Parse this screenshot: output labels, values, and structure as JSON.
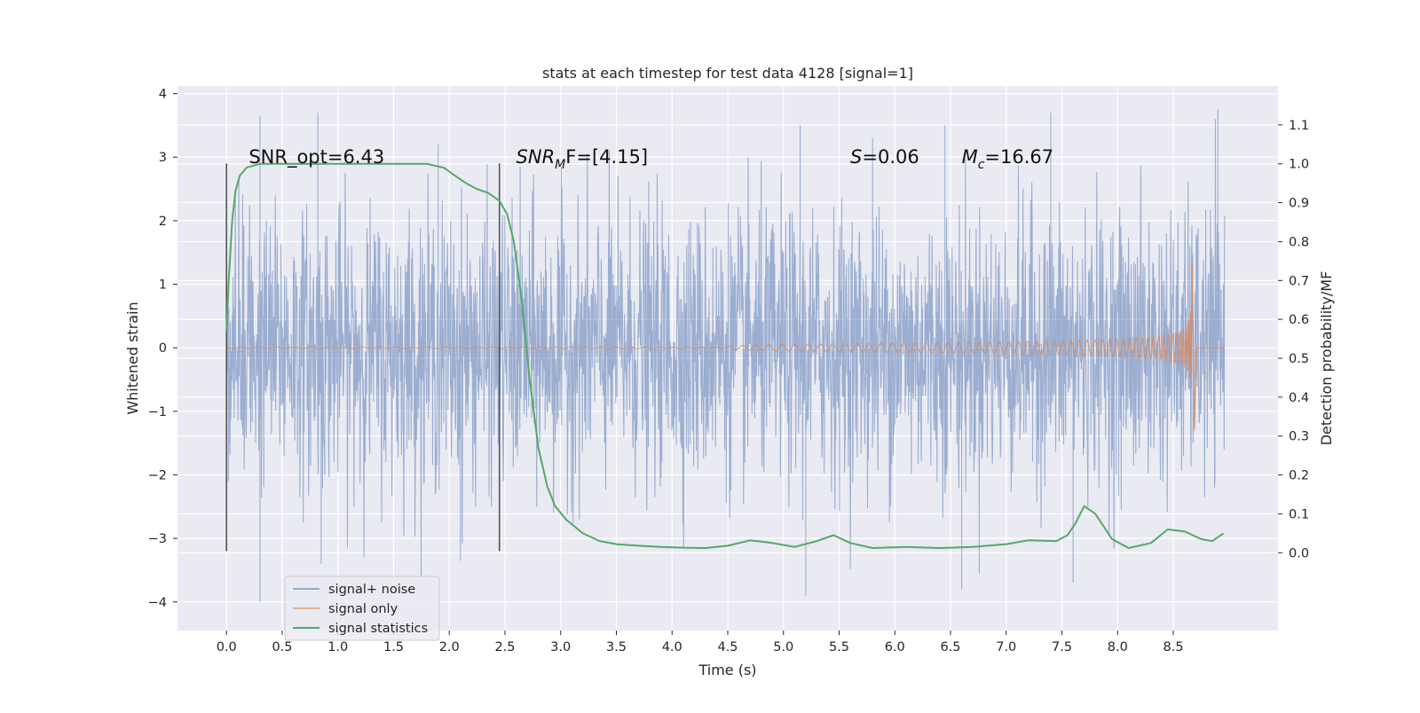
{
  "chart_data": {
    "type": "line",
    "title": "stats at each timestep for test data 4128 [signal=1]",
    "xlabel": "Time (s)",
    "ylabel_left": "Whitened strain",
    "ylabel_right": "Detection probability/MF",
    "xlim": [
      -0.44,
      9.44
    ],
    "ylim_left": [
      -4.45,
      4.12
    ],
    "ylim_right": [
      -0.2,
      1.2
    ],
    "x_ticks": [
      "0.0",
      "0.5",
      "1.0",
      "1.5",
      "2.0",
      "2.5",
      "3.0",
      "3.5",
      "4.0",
      "4.5",
      "5.0",
      "5.5",
      "6.0",
      "6.5",
      "7.0",
      "7.5",
      "8.0",
      "8.5"
    ],
    "y_left_ticks": [
      "4",
      "3",
      "2",
      "1",
      "0",
      "−1",
      "−2",
      "−3",
      "−4"
    ],
    "y_right_ticks": [
      "1.1",
      "1.0",
      "0.9",
      "0.8",
      "0.7",
      "0.6",
      "0.5",
      "0.4",
      "0.3",
      "0.2",
      "0.1",
      "0.0"
    ],
    "grid": true,
    "legend_position": "lower-left",
    "colors": {
      "background": "#eaeaf2",
      "grid": "#ffffff",
      "noise": "#4c72b0",
      "signal": "#dd8452",
      "stats": "#55a868",
      "vline": "#555555"
    },
    "series": [
      {
        "name": "signal+ noise",
        "axis": "left",
        "description_range": [
          -4.0,
          3.75
        ],
        "peaks": [
          {
            "x": 0.3,
            "y": 3.65
          },
          {
            "x": 0.82,
            "y": 3.7
          },
          {
            "x": 1.9,
            "y": 3.2
          },
          {
            "x": 5.15,
            "y": 3.5
          },
          {
            "x": 5.8,
            "y": 3.3
          },
          {
            "x": 6.45,
            "y": 3.5
          },
          {
            "x": 7.4,
            "y": 3.7
          },
          {
            "x": 8.9,
            "y": 3.75
          }
        ],
        "troughs": [
          {
            "x": 0.3,
            "y": -4.0
          },
          {
            "x": 0.85,
            "y": -3.4
          },
          {
            "x": 2.1,
            "y": -3.35
          },
          {
            "x": 5.2,
            "y": -3.9
          },
          {
            "x": 6.6,
            "y": -3.8
          },
          {
            "x": 7.6,
            "y": -3.7
          }
        ]
      },
      {
        "name": "signal only",
        "axis": "left",
        "chirp_start": 4.5,
        "merger_time": 8.67,
        "max_amplitude": 1.35
      },
      {
        "name": "signal statistics",
        "axis": "right",
        "x": [
          0.0,
          0.02,
          0.05,
          0.08,
          0.12,
          0.18,
          0.3,
          0.5,
          1.0,
          1.5,
          1.8,
          1.95,
          2.05,
          2.15,
          2.25,
          2.35,
          2.45,
          2.52,
          2.58,
          2.65,
          2.72,
          2.8,
          2.88,
          2.95,
          3.05,
          3.2,
          3.35,
          3.5,
          3.7,
          3.9,
          4.1,
          4.3,
          4.5,
          4.7,
          4.9,
          5.1,
          5.3,
          5.45,
          5.6,
          5.8,
          6.1,
          6.4,
          6.7,
          7.0,
          7.2,
          7.45,
          7.55,
          7.62,
          7.7,
          7.8,
          7.95,
          8.1,
          8.3,
          8.45,
          8.6,
          8.75,
          8.85,
          8.95
        ],
        "values": [
          0.57,
          0.7,
          0.85,
          0.93,
          0.97,
          0.99,
          1.0,
          1.0,
          1.0,
          1.0,
          1.0,
          0.99,
          0.97,
          0.95,
          0.935,
          0.925,
          0.905,
          0.87,
          0.8,
          0.65,
          0.45,
          0.27,
          0.17,
          0.12,
          0.085,
          0.05,
          0.03,
          0.022,
          0.018,
          0.015,
          0.013,
          0.012,
          0.018,
          0.032,
          0.025,
          0.015,
          0.03,
          0.045,
          0.025,
          0.012,
          0.015,
          0.012,
          0.015,
          0.022,
          0.032,
          0.03,
          0.045,
          0.075,
          0.12,
          0.1,
          0.035,
          0.012,
          0.025,
          0.06,
          0.055,
          0.035,
          0.03,
          0.05
        ]
      }
    ],
    "vertical_lines": [
      {
        "x": 0.0,
        "ymin": -3.2,
        "ymax": 2.9
      },
      {
        "x": 2.45,
        "ymin": -3.2,
        "ymax": 2.9
      }
    ],
    "annotations": [
      {
        "id": "snr-opt",
        "x": 0.2,
        "y": 3.0,
        "text": "SNR_opt=6.43"
      },
      {
        "id": "snr-mf",
        "x": 2.6,
        "y": 3.0,
        "base": "SNR",
        "sub": "M",
        "rest": "F=[4.15]"
      },
      {
        "id": "s-stat",
        "x": 5.6,
        "y": 3.0,
        "base": "S",
        "rest": "=0.06"
      },
      {
        "id": "chirp-mass",
        "x": 6.6,
        "y": 3.0,
        "base": "M",
        "sub": "c",
        "rest": "=16.67"
      }
    ]
  }
}
